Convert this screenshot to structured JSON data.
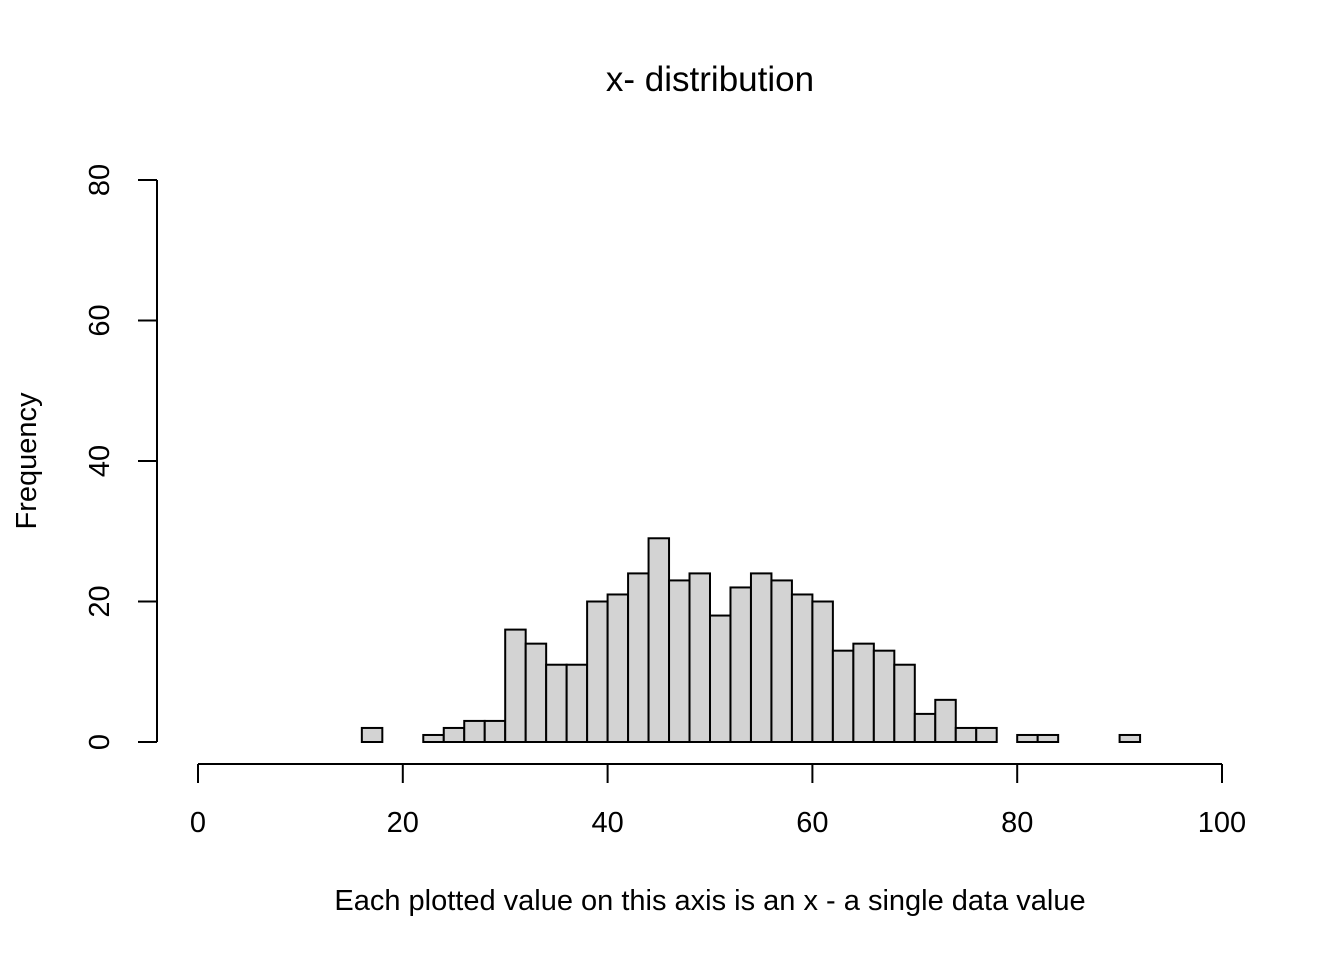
{
  "chart_data": {
    "type": "bar",
    "title": "x- distribution",
    "xlabel": "Each plotted value on this axis is an x - a single data value",
    "ylabel": "Frequency",
    "xlim": [
      0,
      100
    ],
    "ylim": [
      0,
      80
    ],
    "x_ticks": [
      0,
      20,
      40,
      60,
      80,
      100
    ],
    "y_ticks": [
      0,
      20,
      40,
      60,
      80
    ],
    "bin_width": 2,
    "bin_start": 0,
    "values": [
      0,
      0,
      0,
      0,
      0,
      0,
      0,
      0,
      2,
      0,
      0,
      1,
      2,
      3,
      3,
      16,
      14,
      11,
      11,
      20,
      21,
      24,
      29,
      23,
      24,
      18,
      22,
      24,
      23,
      21,
      20,
      13,
      14,
      13,
      11,
      4,
      6,
      2,
      2,
      0,
      1,
      1,
      0,
      0,
      0,
      1,
      0,
      0,
      0,
      0
    ],
    "grid": false,
    "bar_color": "#d3d3d3",
    "edge_color": "#000000"
  }
}
